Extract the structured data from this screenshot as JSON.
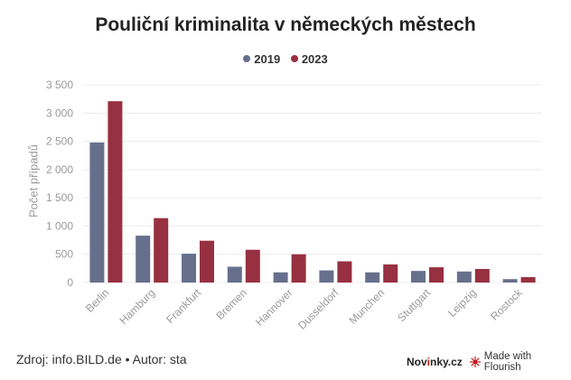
{
  "title": "Pouliční kriminalita v německých městech",
  "footer": {
    "source": "Zdroj: info.BILD.de • Autor: sta",
    "brand_prefix": "Nov",
    "brand_accent": "i",
    "brand_suffix": "nky.cz",
    "made_with": "Made with Flourish"
  },
  "colors": {
    "2019": "#66708d",
    "2023": "#973040",
    "grid": "#ececec",
    "tick": "#9a9a9a"
  },
  "chart_data": {
    "type": "bar",
    "title": "Pouliční kriminalita v německých městech",
    "xlabel": "",
    "ylabel": "Počet případů",
    "ylim": [
      0,
      3500
    ],
    "yticks": [
      0,
      500,
      1000,
      1500,
      2000,
      2500,
      3000,
      3500
    ],
    "ytick_labels": [
      "0",
      "500",
      "1 000",
      "1 500",
      "2 000",
      "2 500",
      "3 000",
      "3 500"
    ],
    "grid": true,
    "legend_position": "top-center",
    "categories": [
      "Berlin",
      "Hamburg",
      "Frankfurt",
      "Bremen",
      "Hannover",
      "Dusseldorf",
      "Munchen",
      "Stuttgart",
      "Leipzig",
      "Rostock"
    ],
    "series": [
      {
        "name": "2019",
        "values": [
          2480,
          830,
          510,
          280,
          180,
          215,
          180,
          205,
          195,
          60
        ]
      },
      {
        "name": "2023",
        "values": [
          3210,
          1140,
          740,
          580,
          500,
          375,
          320,
          270,
          240,
          95
        ]
      }
    ]
  }
}
